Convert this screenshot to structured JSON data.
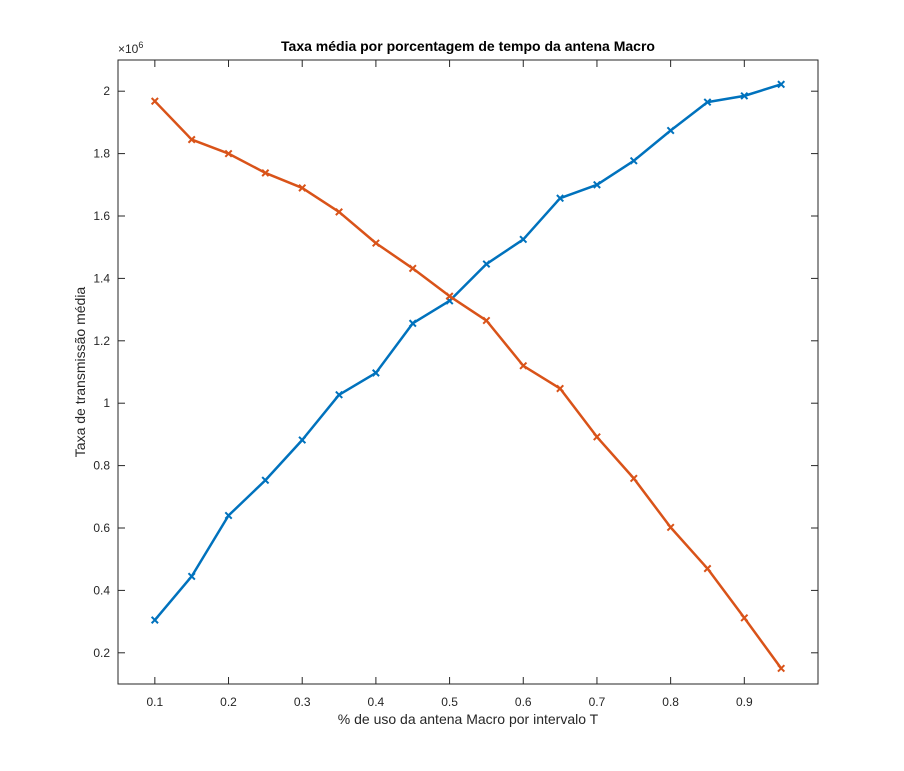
{
  "chart_data": {
    "type": "line",
    "title": "Taxa média por porcentagem de tempo da antena Macro",
    "xlabel": "% de uso da antena Macro por intervalo T",
    "ylabel": "Taxa de transmissão média",
    "exponent_base": "×10",
    "exponent_power": "6",
    "xlim": [
      0.05,
      1.0
    ],
    "ylim": [
      0.1,
      2.1
    ],
    "x_ticks": [
      0.1,
      0.2,
      0.3,
      0.4,
      0.5,
      0.6,
      0.7,
      0.8,
      0.9
    ],
    "x_tick_labels": [
      "0.1",
      "0.2",
      "0.3",
      "0.4",
      "0.5",
      "0.6",
      "0.7",
      "0.8",
      "0.9"
    ],
    "y_ticks": [
      0.2,
      0.4,
      0.6,
      0.8,
      1.0,
      1.2,
      1.4,
      1.6,
      1.8,
      2.0
    ],
    "y_tick_labels": [
      "0.2",
      "0.4",
      "0.6",
      "0.8",
      "1",
      "1.2",
      "1.4",
      "1.6",
      "1.8",
      "2"
    ],
    "grid": false,
    "legend": "none",
    "x": [
      0.1,
      0.15,
      0.2,
      0.25,
      0.3,
      0.35,
      0.4,
      0.45,
      0.5,
      0.55,
      0.6,
      0.65,
      0.7,
      0.75,
      0.8,
      0.85,
      0.9,
      0.95
    ],
    "series": [
      {
        "color": "#0072BD",
        "marker": "x",
        "values": [
          0.305,
          0.445,
          0.64,
          0.753,
          0.882,
          1.027,
          1.097,
          1.256,
          1.328,
          1.446,
          1.525,
          1.657,
          1.7,
          1.777,
          1.874,
          1.965,
          1.985,
          2.022
        ]
      },
      {
        "color": "#D95319",
        "marker": "x",
        "values": [
          1.968,
          1.845,
          1.8,
          1.738,
          1.69,
          1.613,
          1.513,
          1.432,
          1.343,
          1.265,
          1.12,
          1.047,
          0.892,
          0.759,
          0.602,
          0.47,
          0.312,
          0.15
        ]
      }
    ]
  }
}
